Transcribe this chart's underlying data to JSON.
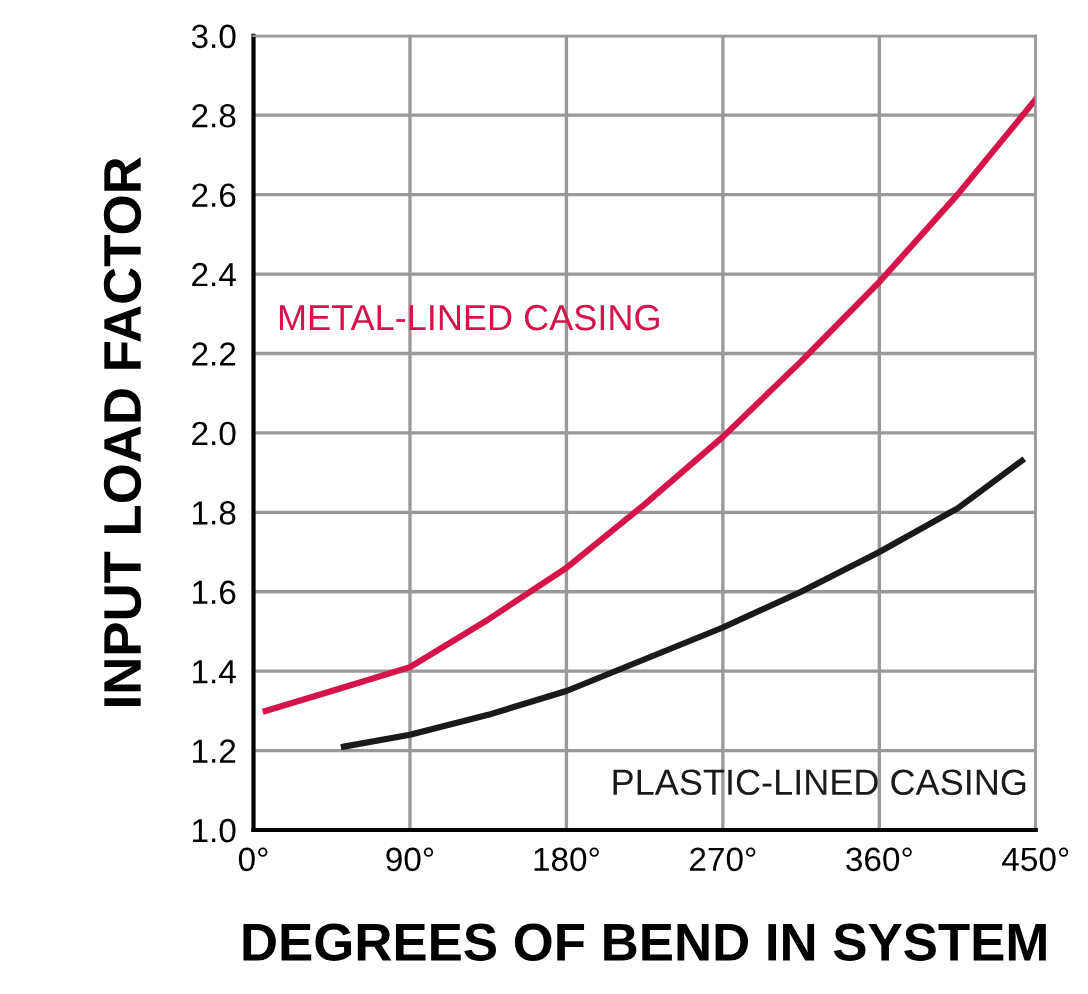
{
  "chart_data": {
    "type": "line",
    "xlabel": "DEGREES OF BEND IN SYSTEM",
    "ylabel": "INPUT LOAD FACTOR",
    "xlim": [
      0,
      450
    ],
    "xticks": [
      {
        "value": 0,
        "label": "0°"
      },
      {
        "value": 90,
        "label": "90°"
      },
      {
        "value": 180,
        "label": "180°"
      },
      {
        "value": 270,
        "label": "270°"
      },
      {
        "value": 360,
        "label": "360°"
      },
      {
        "value": 450,
        "label": "450°"
      }
    ],
    "ylim": [
      1.0,
      3.0
    ],
    "yticks": [
      {
        "value": 1.0,
        "label": "1.0"
      },
      {
        "value": 1.2,
        "label": "1.2"
      },
      {
        "value": 1.4,
        "label": "1.4"
      },
      {
        "value": 1.6,
        "label": "1.6"
      },
      {
        "value": 1.8,
        "label": "1.8"
      },
      {
        "value": 2.0,
        "label": "2.0"
      },
      {
        "value": 2.2,
        "label": "2.2"
      },
      {
        "value": 2.4,
        "label": "2.4"
      },
      {
        "value": 2.6,
        "label": "2.6"
      },
      {
        "value": 2.8,
        "label": "2.8"
      },
      {
        "value": 3.0,
        "label": "3.0"
      }
    ],
    "grid": true,
    "marker": "none",
    "line_style": "solid",
    "series": [
      {
        "name": "METAL-LINED CASING",
        "color": "#d4144a",
        "x": [
          7,
          45,
          90,
          135,
          180,
          225,
          270,
          315,
          360,
          405,
          450
        ],
        "values": [
          1.3,
          1.35,
          1.41,
          1.53,
          1.66,
          1.82,
          1.99,
          2.18,
          2.38,
          2.6,
          2.84
        ]
      },
      {
        "name": "PLASTIC-LINED CASING",
        "color": "#1a1a1a",
        "x": [
          52,
          90,
          135,
          180,
          225,
          270,
          315,
          360,
          405,
          442
        ],
        "values": [
          1.21,
          1.24,
          1.29,
          1.35,
          1.43,
          1.51,
          1.6,
          1.7,
          1.81,
          1.93
        ]
      }
    ]
  }
}
